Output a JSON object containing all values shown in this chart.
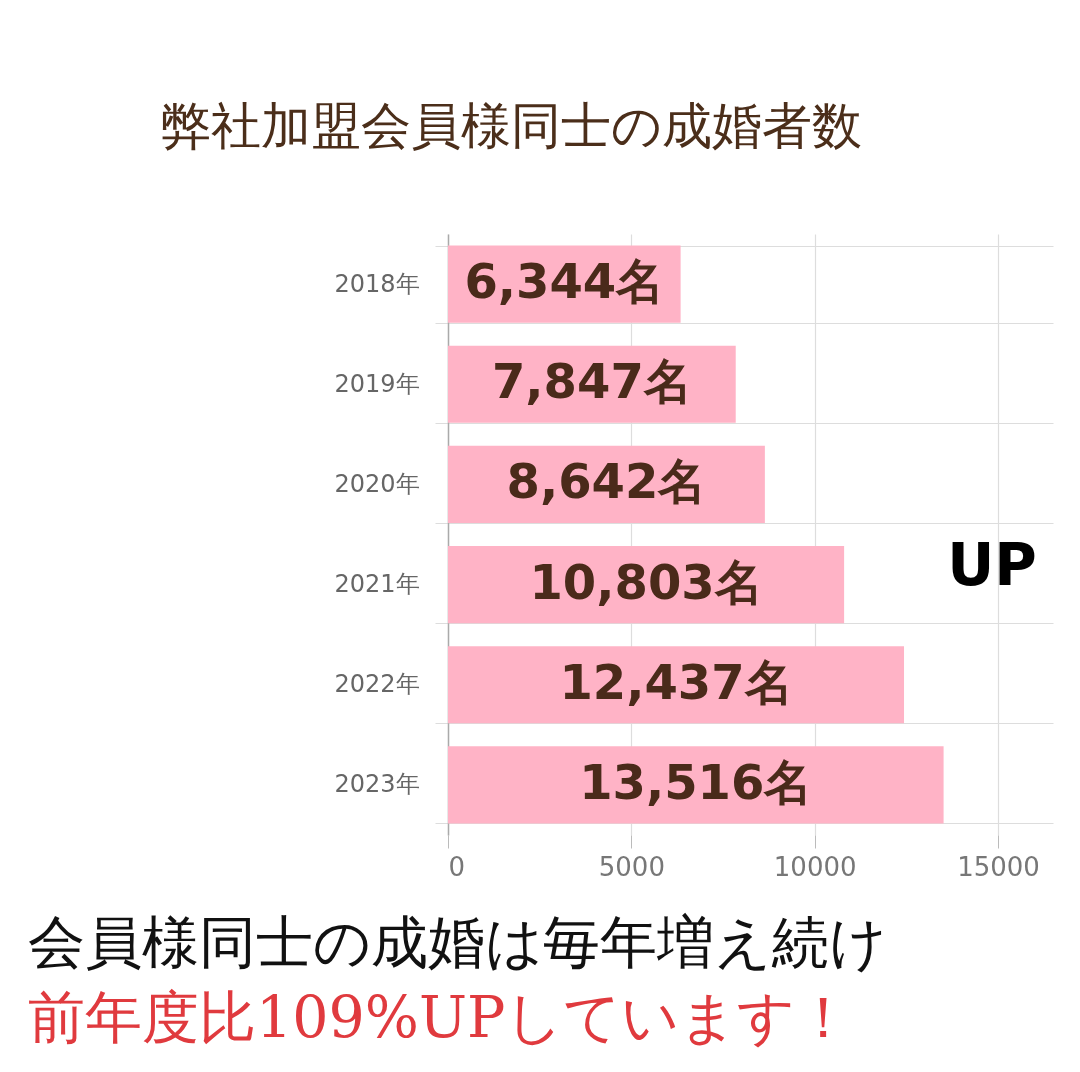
{
  "chart_data": {
    "type": "bar",
    "orientation": "horizontal",
    "title": "弊社加盟会員様同士の成婚者数",
    "categories": [
      "2018年",
      "2019年",
      "2020年",
      "2021年",
      "2022年",
      "2023年"
    ],
    "values": [
      6344,
      7847,
      8642,
      10803,
      12437,
      13516
    ],
    "color": "#ffb3c6",
    "value_labels": [
      "6,344名",
      "7,847名",
      "8,642名",
      "10,803名",
      "12,437名",
      "13,516名"
    ],
    "xlim": [
      0,
      16500
    ],
    "xticks": [
      0,
      5000,
      10000,
      15000
    ],
    "grid": true,
    "annotations": [
      "UP",
      "会員様同士の成婚は毎年増え続け",
      "前年度比109%UPしています！"
    ]
  }
}
